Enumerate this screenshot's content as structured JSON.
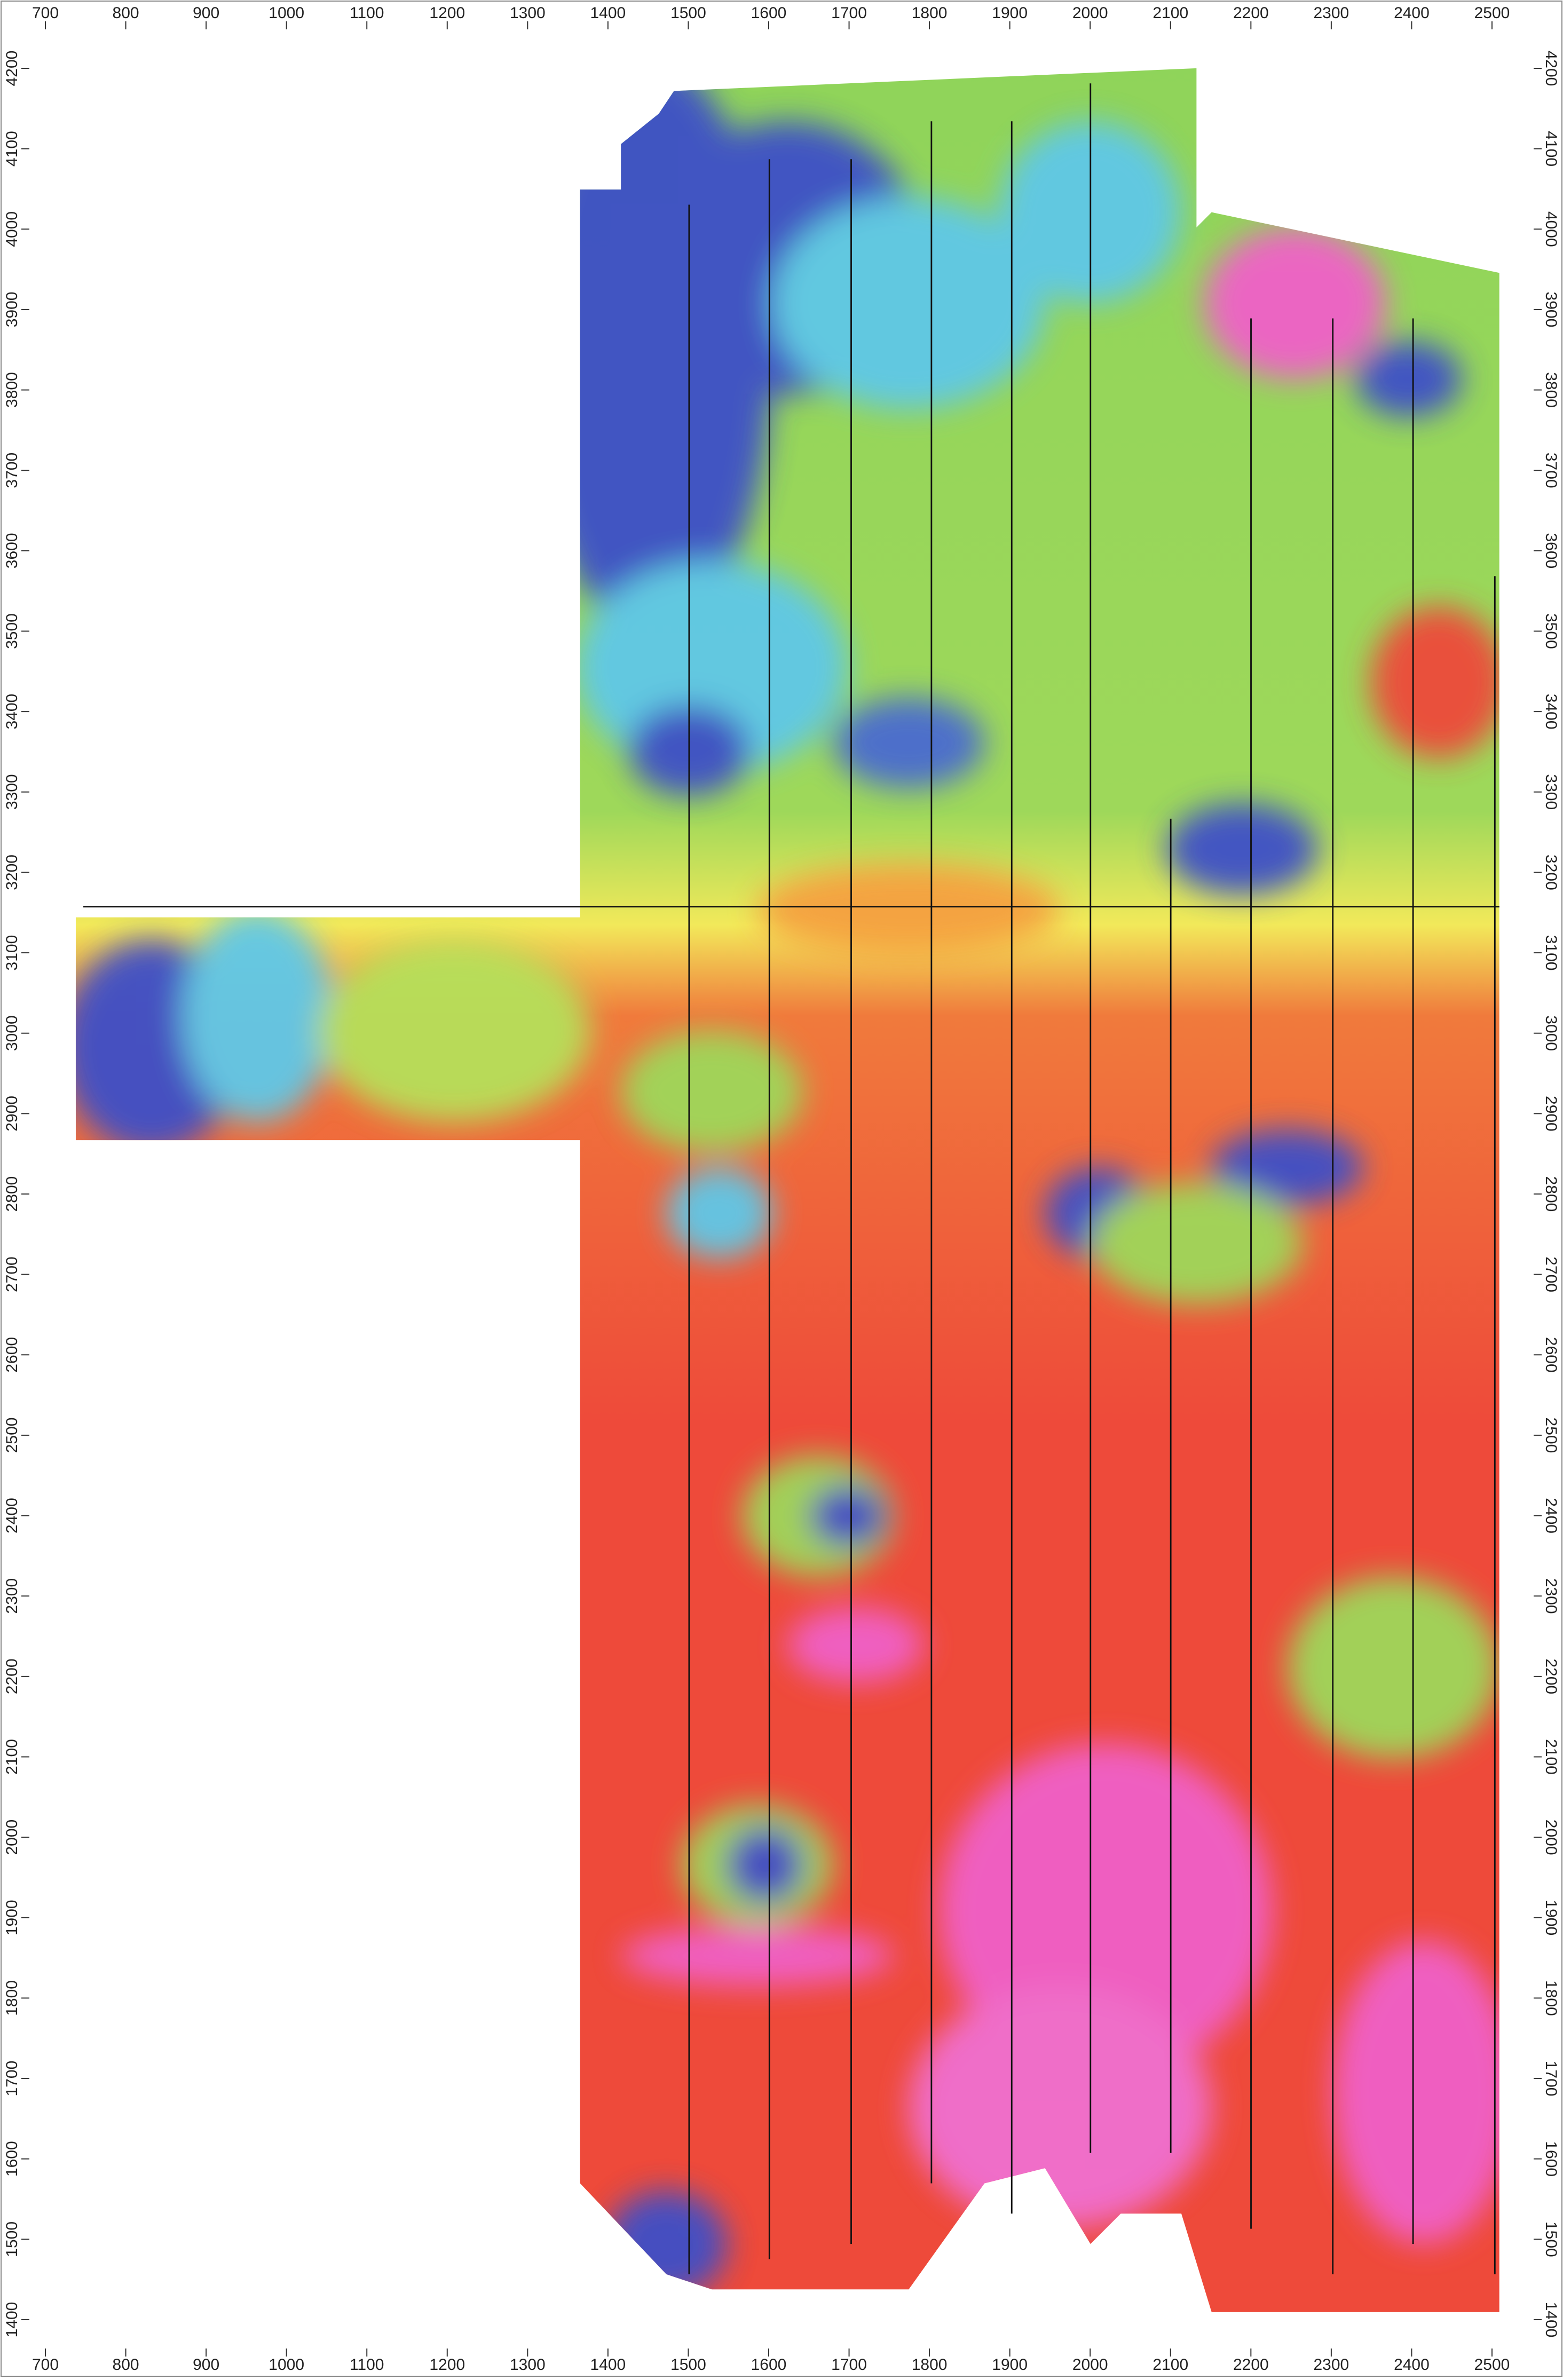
{
  "map": {
    "x_ticks": [
      700,
      800,
      900,
      1000,
      1100,
      1200,
      1300,
      1400,
      1500,
      1600,
      1700,
      1800,
      1900,
      2000,
      2100,
      2200,
      2300,
      2400,
      2500
    ],
    "y_ticks": [
      1400,
      1500,
      1600,
      1700,
      1800,
      1900,
      2000,
      2100,
      2200,
      2300,
      2400,
      2500,
      2600,
      2700,
      2800,
      2900,
      3000,
      3100,
      3200,
      3300,
      3400,
      3500,
      3600,
      3700,
      3800,
      3900,
      4000,
      4100,
      4200
    ]
  }
}
